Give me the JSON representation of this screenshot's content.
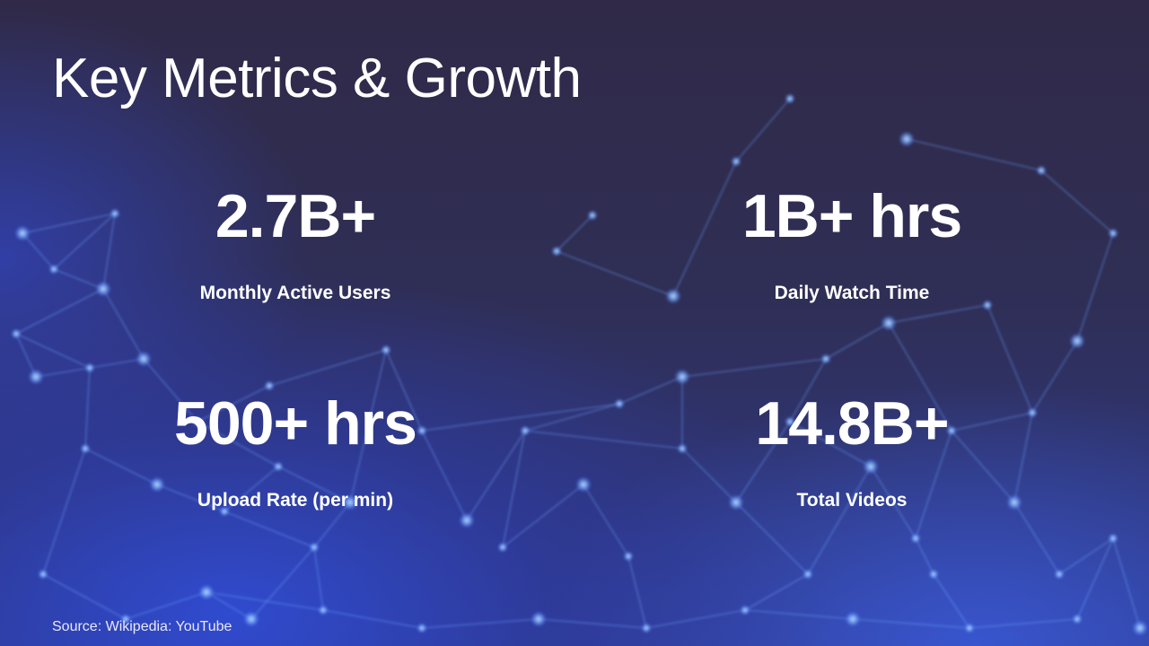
{
  "slide": {
    "title": "Key Metrics & Growth",
    "metrics": [
      {
        "value": "2.7B+",
        "label": "Monthly Active Users"
      },
      {
        "value": "1B+ hrs",
        "label": "Daily Watch Time"
      },
      {
        "value": "500+ hrs",
        "label": "Upload Rate (per min)"
      },
      {
        "value": "14.8B+",
        "label": "Total Videos"
      }
    ],
    "source": "Source: Wikipedia: YouTube"
  },
  "colors": {
    "background": "#2d2a45",
    "network_glow": "#4a78ff",
    "text": "#ffffff"
  }
}
